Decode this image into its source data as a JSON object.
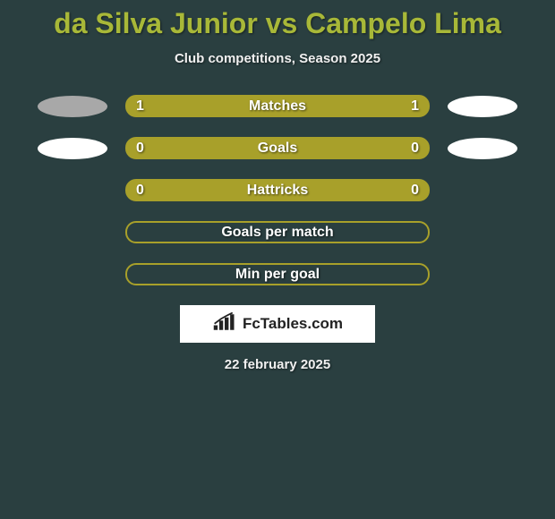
{
  "title": "da Silva Junior vs Campelo Lima",
  "subtitle": "Club competitions, Season 2025",
  "colors": {
    "background": "#2a3f40",
    "accent": "#a8b838",
    "bar_fill": "#a8a02a",
    "bar_border": "#a8a02a",
    "ellipse_left_1": "#a8a8a8",
    "ellipse_left_2": "#ffffff",
    "ellipse_right_1": "#ffffff",
    "ellipse_right_2": "#ffffff",
    "brand_bg": "#ffffff",
    "brand_text": "#222222"
  },
  "rows": [
    {
      "label": "Matches",
      "left": "1",
      "right": "1",
      "filled": true,
      "ellipse_left": "#a8a8a8",
      "ellipse_right": "#ffffff"
    },
    {
      "label": "Goals",
      "left": "0",
      "right": "0",
      "filled": true,
      "ellipse_left": "#ffffff",
      "ellipse_right": "#ffffff"
    },
    {
      "label": "Hattricks",
      "left": "0",
      "right": "0",
      "filled": true,
      "ellipse_left": null,
      "ellipse_right": null
    },
    {
      "label": "Goals per match",
      "left": "",
      "right": "",
      "filled": false,
      "ellipse_left": null,
      "ellipse_right": null
    },
    {
      "label": "Min per goal",
      "left": "",
      "right": "",
      "filled": false,
      "ellipse_left": null,
      "ellipse_right": null
    }
  ],
  "brand": "FcTables.com",
  "date": "22 february 2025"
}
